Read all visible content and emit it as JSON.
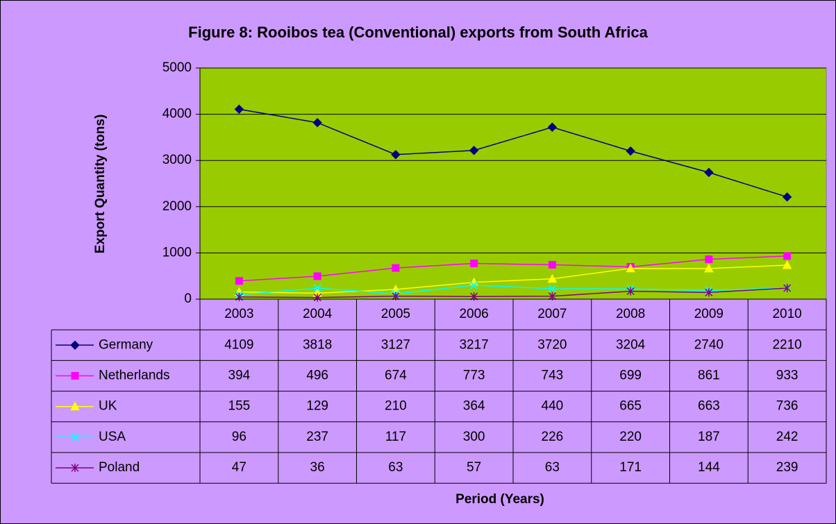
{
  "chart_data": {
    "type": "line",
    "title": "Figure 8: Rooibos tea (Conventional) exports from South Africa",
    "x_label": "Period (Years)",
    "y_label": "Export Quantity (tons)",
    "categories": [
      "2003",
      "2004",
      "2005",
      "2006",
      "2007",
      "2008",
      "2009",
      "2010"
    ],
    "series": [
      {
        "name": "Germany",
        "color": "#000080",
        "marker": "diamond",
        "values": [
          4109,
          3818,
          3127,
          3217,
          3720,
          3204,
          2740,
          2210
        ]
      },
      {
        "name": "Netherlands",
        "color": "#ff00ff",
        "marker": "square",
        "values": [
          394,
          496,
          674,
          773,
          743,
          699,
          861,
          933
        ]
      },
      {
        "name": "UK",
        "color": "#ffff00",
        "marker": "triangle",
        "values": [
          155,
          129,
          210,
          364,
          440,
          665,
          663,
          736
        ]
      },
      {
        "name": "USA",
        "color": "#00ffff",
        "marker": "x",
        "values": [
          96,
          237,
          117,
          300,
          226,
          220,
          187,
          242
        ]
      },
      {
        "name": "Poland",
        "color": "#800080",
        "marker": "star",
        "values": [
          47,
          36,
          63,
          57,
          63,
          171,
          144,
          239
        ]
      }
    ],
    "ylim": [
      0,
      5000
    ],
    "yticks": [
      0,
      1000,
      2000,
      3000,
      4000,
      5000
    ],
    "grid": true,
    "plot_color": "#99cc00",
    "background": "#cc99ff"
  }
}
